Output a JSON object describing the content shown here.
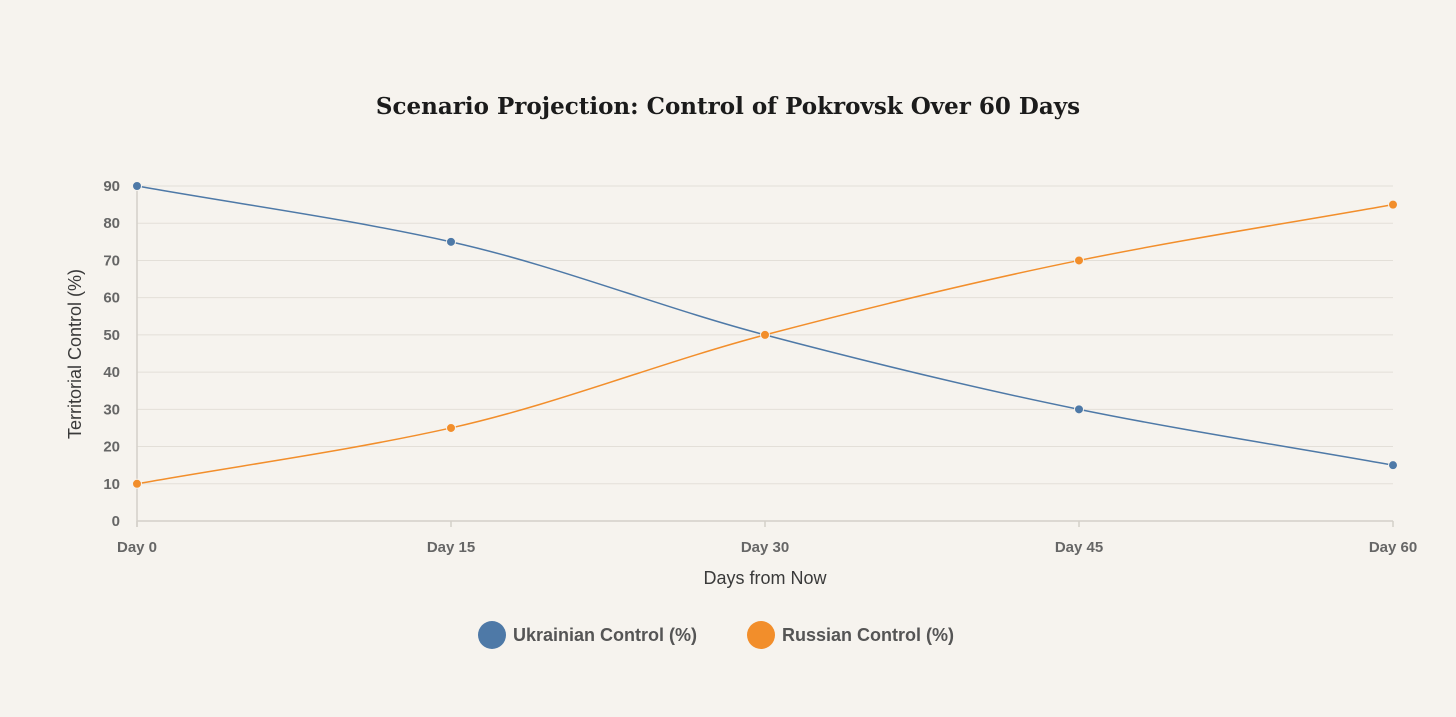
{
  "chart_data": {
    "type": "line",
    "title": "Scenario Projection: Control of Pokrovsk Over 60 Days",
    "xlabel": "Days from Now",
    "ylabel": "Territorial Control (%)",
    "categories": [
      "Day 0",
      "Day 15",
      "Day 30",
      "Day 45",
      "Day 60"
    ],
    "ylim": [
      0,
      90
    ],
    "yticks": [
      0,
      10,
      20,
      30,
      40,
      50,
      60,
      70,
      80,
      90
    ],
    "grid": true,
    "legend_position": "bottom-center",
    "series": [
      {
        "name": "Ukrainian Control (%)",
        "color": "#4e79a7",
        "values": [
          90,
          75,
          50,
          30,
          15
        ]
      },
      {
        "name": "Russian Control (%)",
        "color": "#f28e2b",
        "values": [
          10,
          25,
          50,
          70,
          85
        ]
      }
    ]
  }
}
